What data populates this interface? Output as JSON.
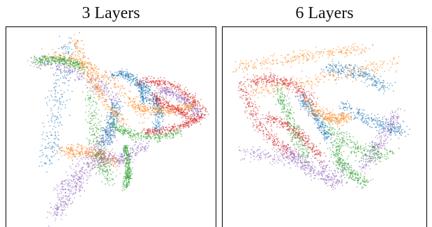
{
  "chart_data": [
    {
      "type": "scatter",
      "title": "3 Layers",
      "series_colors": [
        "#1f77b4",
        "#ff7f0e",
        "#2ca02c",
        "#d62728",
        "#9467bd"
      ]
    },
    {
      "type": "scatter",
      "title": "6 Layers",
      "series_colors": [
        "#1f77b4",
        "#ff7f0e",
        "#2ca02c",
        "#d62728",
        "#9467bd"
      ]
    }
  ]
}
